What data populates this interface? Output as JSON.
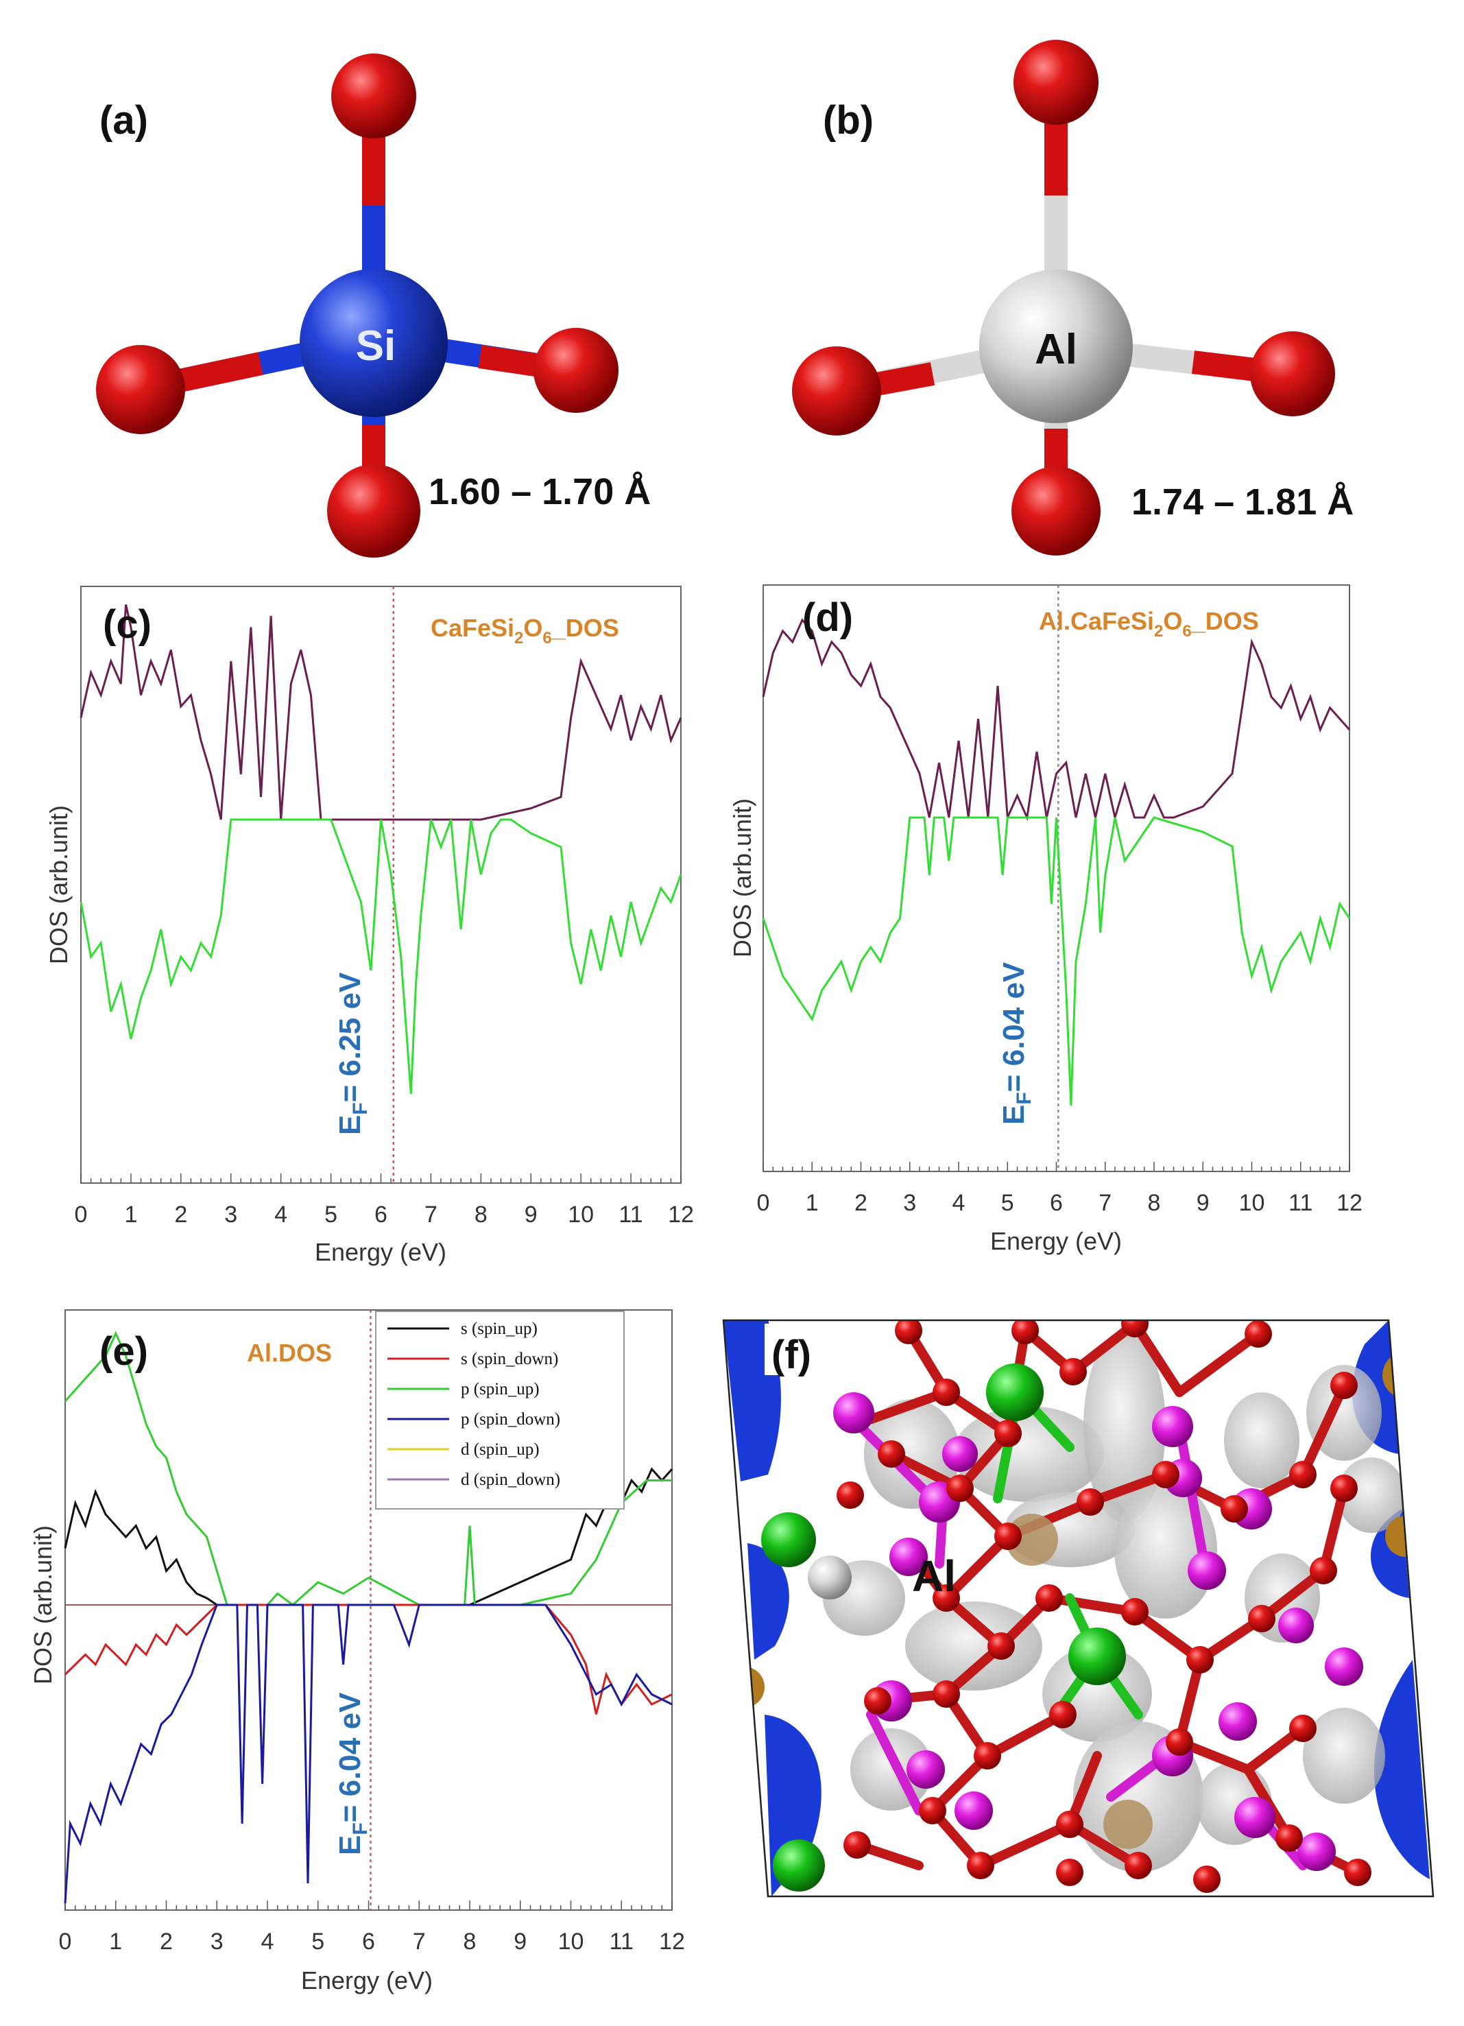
{
  "panels": {
    "a": {
      "label": "(a)",
      "atom": "Si",
      "bond": "1.60 – 1.70 Å"
    },
    "b": {
      "label": "(b)",
      "atom": "Al",
      "bond": "1.74 – 1.81 Å"
    },
    "c": {
      "label": "(c)",
      "title_pre": "CaFeSi",
      "title_sub": "2",
      "title_mid": "O",
      "title_sub2": "6",
      "title_post": "_DOS",
      "ef_pre": "E",
      "ef_sub": "F",
      "ef_post": "= 6.25 eV",
      "ylabel": "DOS (arb.unit)",
      "xlabel": "Energy (eV)"
    },
    "d": {
      "label": "(d)",
      "title_pre": "Al.CaFeSi",
      "title_sub": "2",
      "title_mid": "O",
      "title_sub2": "6",
      "title_post": "_DOS",
      "ef_pre": "E",
      "ef_sub": "F",
      "ef_post": "= 6.04 eV",
      "ylabel": "DOS (arb.unit)",
      "xlabel": "Energy (eV)"
    },
    "e": {
      "label": "(e)",
      "title": "Al.DOS",
      "ef_pre": "E",
      "ef_sub": "F",
      "ef_post": "= 6.04 eV",
      "ylabel": "DOS (arb.unit)",
      "xlabel": "Energy (eV)"
    },
    "f": {
      "label": "(f)",
      "atom": "Al"
    }
  },
  "colors": {
    "o_red": "#d01010",
    "si_blue": "#1a3ad8",
    "al_grey": "#d8d8d8",
    "up": "#6b1f4f",
    "down": "#33dd33",
    "ef": "#c06060",
    "title_orange": "#d8852a",
    "ef_blue": "#2a6fb5"
  },
  "chart_data": [
    {
      "type": "line",
      "panel": "c",
      "xlabel": "Energy (eV)",
      "ylabel": "DOS (arb.unit)",
      "xlim": [
        0,
        12
      ],
      "xticks": [
        "0",
        "1",
        "2",
        "3",
        "4",
        "5",
        "6",
        "7",
        "8",
        "9",
        "10",
        "11",
        "12"
      ],
      "fermi": 6.25,
      "series": [
        {
          "color": "#6b1f4f",
          "x": [
            0,
            0.2,
            0.4,
            0.6,
            0.8,
            0.9,
            1.0,
            1.2,
            1.4,
            1.6,
            1.8,
            2.0,
            2.2,
            2.4,
            2.6,
            2.8,
            3.0,
            3.2,
            3.4,
            3.6,
            3.8,
            4.0,
            4.2,
            4.4,
            4.6,
            4.8,
            5.0,
            6.0,
            7.0,
            8.0,
            9.0,
            9.6,
            9.8,
            10.0,
            10.2,
            10.4,
            10.6,
            10.8,
            11.0,
            11.2,
            11.4,
            11.6,
            11.8,
            12.0
          ],
          "y": [
            0.45,
            0.65,
            0.55,
            0.7,
            0.6,
            0.95,
            0.85,
            0.55,
            0.7,
            0.6,
            0.75,
            0.5,
            0.55,
            0.35,
            0.2,
            0.0,
            0.7,
            0.2,
            0.85,
            0.1,
            0.9,
            0.0,
            0.6,
            0.75,
            0.55,
            0.0,
            0.0,
            0.0,
            0.0,
            0.0,
            0.05,
            0.1,
            0.45,
            0.7,
            0.6,
            0.5,
            0.4,
            0.55,
            0.35,
            0.5,
            0.4,
            0.55,
            0.35,
            0.45
          ]
        },
        {
          "color": "#33dd33",
          "x": [
            0,
            0.2,
            0.4,
            0.6,
            0.8,
            1.0,
            1.2,
            1.4,
            1.6,
            1.8,
            2.0,
            2.2,
            2.4,
            2.6,
            2.8,
            3.0,
            5.0,
            5.6,
            5.8,
            6.0,
            6.2,
            6.4,
            6.6,
            6.7,
            6.8,
            7.0,
            7.2,
            7.4,
            7.6,
            7.8,
            8.0,
            8.2,
            8.4,
            8.6,
            9.0,
            9.6,
            9.8,
            10.0,
            10.2,
            10.4,
            10.6,
            10.8,
            11.0,
            11.2,
            11.4,
            11.6,
            11.8,
            12.0
          ],
          "y": [
            -0.3,
            -0.5,
            -0.45,
            -0.7,
            -0.6,
            -0.8,
            -0.65,
            -0.55,
            -0.4,
            -0.6,
            -0.5,
            -0.55,
            -0.45,
            -0.5,
            -0.35,
            0.0,
            0.0,
            -0.3,
            -0.55,
            0.0,
            -0.2,
            -0.5,
            -1.0,
            -0.6,
            -0.35,
            0.0,
            -0.1,
            0.0,
            -0.4,
            0.0,
            -0.2,
            -0.05,
            0.0,
            0.0,
            -0.05,
            -0.1,
            -0.45,
            -0.6,
            -0.4,
            -0.55,
            -0.35,
            -0.5,
            -0.3,
            -0.45,
            -0.35,
            -0.25,
            -0.3,
            -0.2
          ]
        }
      ]
    },
    {
      "type": "line",
      "panel": "d",
      "xlabel": "Energy (eV)",
      "ylabel": "DOS (arb.unit)",
      "xlim": [
        0,
        12
      ],
      "xticks": [
        "0",
        "1",
        "2",
        "3",
        "4",
        "5",
        "6",
        "7",
        "8",
        "9",
        "10",
        "11",
        "12"
      ],
      "fermi": 6.04,
      "series": [
        {
          "color": "#6b1f4f",
          "x": [
            0,
            0.2,
            0.4,
            0.6,
            0.8,
            1.0,
            1.2,
            1.4,
            1.6,
            1.8,
            2.0,
            2.2,
            2.4,
            2.6,
            2.8,
            3.0,
            3.2,
            3.4,
            3.6,
            3.8,
            4.0,
            4.2,
            4.4,
            4.6,
            4.8,
            5.0,
            5.2,
            5.4,
            5.6,
            5.8,
            6.0,
            6.2,
            6.4,
            6.6,
            6.8,
            7.0,
            7.2,
            7.4,
            7.6,
            7.8,
            8.0,
            8.2,
            8.4,
            9.0,
            9.6,
            9.8,
            10.0,
            10.2,
            10.4,
            10.6,
            10.8,
            11.0,
            11.2,
            11.4,
            11.6,
            11.8,
            12.0
          ],
          "y": [
            0.55,
            0.75,
            0.85,
            0.8,
            0.9,
            0.85,
            0.7,
            0.8,
            0.75,
            0.65,
            0.6,
            0.7,
            0.55,
            0.5,
            0.4,
            0.3,
            0.2,
            0.0,
            0.25,
            0.0,
            0.35,
            0.0,
            0.45,
            0.0,
            0.6,
            0.0,
            0.1,
            0.0,
            0.3,
            0.0,
            0.2,
            0.25,
            0.0,
            0.2,
            0.0,
            0.2,
            0.0,
            0.15,
            0.0,
            0.0,
            0.1,
            0.0,
            0.0,
            0.05,
            0.2,
            0.5,
            0.8,
            0.7,
            0.55,
            0.5,
            0.6,
            0.45,
            0.55,
            0.4,
            0.5,
            0.45,
            0.4
          ]
        },
        {
          "color": "#33dd33",
          "x": [
            0,
            0.2,
            0.4,
            0.6,
            0.8,
            1.0,
            1.2,
            1.4,
            1.6,
            1.8,
            2.0,
            2.2,
            2.4,
            2.6,
            2.8,
            3.0,
            3.3,
            3.4,
            3.5,
            3.7,
            3.8,
            3.9,
            4.8,
            4.9,
            5.0,
            5.8,
            5.9,
            6.0,
            6.2,
            6.3,
            6.4,
            6.6,
            6.8,
            6.9,
            7.0,
            7.2,
            7.4,
            8.0,
            9.0,
            9.6,
            9.8,
            10.0,
            10.2,
            10.4,
            10.6,
            10.8,
            11.0,
            11.2,
            11.4,
            11.6,
            11.8,
            12.0
          ],
          "y": [
            -0.35,
            -0.45,
            -0.55,
            -0.6,
            -0.65,
            -0.7,
            -0.6,
            -0.55,
            -0.5,
            -0.6,
            -0.5,
            -0.45,
            -0.5,
            -0.4,
            -0.35,
            0.0,
            0.0,
            -0.2,
            0.0,
            0.0,
            -0.15,
            0.0,
            0.0,
            -0.2,
            0.0,
            0.0,
            -0.3,
            0.0,
            -0.6,
            -1.0,
            -0.5,
            -0.3,
            0.0,
            -0.4,
            -0.2,
            0.0,
            -0.15,
            0.0,
            -0.05,
            -0.1,
            -0.4,
            -0.55,
            -0.45,
            -0.6,
            -0.5,
            -0.45,
            -0.4,
            -0.5,
            -0.35,
            -0.45,
            -0.3,
            -0.35
          ]
        }
      ]
    },
    {
      "type": "line",
      "panel": "e",
      "xlabel": "Energy (eV)",
      "ylabel": "DOS (arb.unit)",
      "xlim": [
        0,
        12
      ],
      "xticks": [
        "0",
        "1",
        "2",
        "3",
        "4",
        "5",
        "6",
        "7",
        "8",
        "9",
        "10",
        "11",
        "12"
      ],
      "fermi": 6.04,
      "legend": [
        "s (spin_up)",
        "s (spin_down)",
        "p (spin_up)",
        "p (spin_down)",
        "d (spin_up)",
        "d (spin_down)"
      ],
      "legend_colors": [
        "#111111",
        "#d02020",
        "#33cc33",
        "#1a1aa0",
        "#e0d020",
        "#9a7ab0"
      ],
      "series": [
        {
          "color": "#111111",
          "x": [
            0,
            0.2,
            0.4,
            0.6,
            0.8,
            1.0,
            1.2,
            1.4,
            1.6,
            1.8,
            2.0,
            2.2,
            2.4,
            2.6,
            2.8,
            3.0,
            8.0,
            8.5,
            9.0,
            9.5,
            10.0,
            10.3,
            10.5,
            10.8,
            11.0,
            11.2,
            11.4,
            11.6,
            11.8,
            12.0
          ],
          "y": [
            0.25,
            0.45,
            0.35,
            0.5,
            0.4,
            0.35,
            0.3,
            0.35,
            0.25,
            0.3,
            0.15,
            0.2,
            0.1,
            0.05,
            0.03,
            0.0,
            0.0,
            0.05,
            0.1,
            0.15,
            0.2,
            0.4,
            0.35,
            0.5,
            0.45,
            0.55,
            0.5,
            0.6,
            0.55,
            0.6
          ]
        },
        {
          "color": "#33cc33",
          "x": [
            0,
            0.2,
            0.4,
            0.6,
            0.8,
            1.0,
            1.2,
            1.4,
            1.6,
            1.8,
            2.0,
            2.2,
            2.4,
            2.6,
            2.8,
            3.0,
            3.2,
            4.0,
            4.2,
            4.5,
            5.0,
            5.5,
            6.0,
            7.0,
            7.9,
            8.0,
            8.1,
            9.0,
            10.0,
            10.5,
            11.0,
            11.5,
            12.0
          ],
          "y": [
            0.9,
            0.95,
            1.0,
            1.05,
            1.1,
            1.2,
            1.1,
            0.95,
            0.8,
            0.7,
            0.65,
            0.5,
            0.4,
            0.35,
            0.3,
            0.15,
            0.0,
            0.0,
            0.05,
            0.0,
            0.1,
            0.05,
            0.12,
            0.0,
            0.0,
            0.35,
            0.0,
            0.0,
            0.05,
            0.2,
            0.45,
            0.55,
            0.55
          ]
        },
        {
          "color": "#d02020",
          "x": [
            0,
            0.2,
            0.4,
            0.6,
            0.8,
            1.0,
            1.2,
            1.4,
            1.6,
            1.8,
            2.0,
            2.2,
            2.4,
            2.6,
            2.8,
            3.0,
            9.5,
            10.0,
            10.3,
            10.5,
            10.7,
            11.0,
            11.3,
            11.6,
            12.0
          ],
          "y": [
            -0.35,
            -0.3,
            -0.25,
            -0.3,
            -0.2,
            -0.25,
            -0.3,
            -0.2,
            -0.25,
            -0.15,
            -0.2,
            -0.1,
            -0.15,
            -0.1,
            -0.05,
            0.0,
            0.0,
            -0.15,
            -0.3,
            -0.55,
            -0.35,
            -0.5,
            -0.4,
            -0.5,
            -0.45
          ]
        },
        {
          "color": "#1a1aa0",
          "x": [
            0,
            0.1,
            0.3,
            0.5,
            0.7,
            0.9,
            1.1,
            1.3,
            1.5,
            1.7,
            1.9,
            2.1,
            2.3,
            2.5,
            2.7,
            3.0,
            3.4,
            3.5,
            3.6,
            3.8,
            3.9,
            4.0,
            4.7,
            4.8,
            4.9,
            5.4,
            5.5,
            5.6,
            6.0,
            6.5,
            6.8,
            7.0,
            9.5,
            10.0,
            10.3,
            10.5,
            10.8,
            11.0,
            11.3,
            11.6,
            12.0
          ],
          "y": [
            -1.5,
            -1.1,
            -1.2,
            -1.0,
            -1.1,
            -0.9,
            -1.0,
            -0.85,
            -0.7,
            -0.75,
            -0.6,
            -0.55,
            -0.45,
            -0.35,
            -0.2,
            0.0,
            0.0,
            -1.1,
            0.0,
            0.0,
            -0.9,
            0.0,
            0.0,
            -1.4,
            0.0,
            0.0,
            -0.3,
            0.0,
            0.0,
            0.0,
            -0.2,
            0.0,
            0.0,
            -0.2,
            -0.35,
            -0.45,
            -0.4,
            -0.5,
            -0.35,
            -0.45,
            -0.5
          ]
        }
      ]
    }
  ]
}
